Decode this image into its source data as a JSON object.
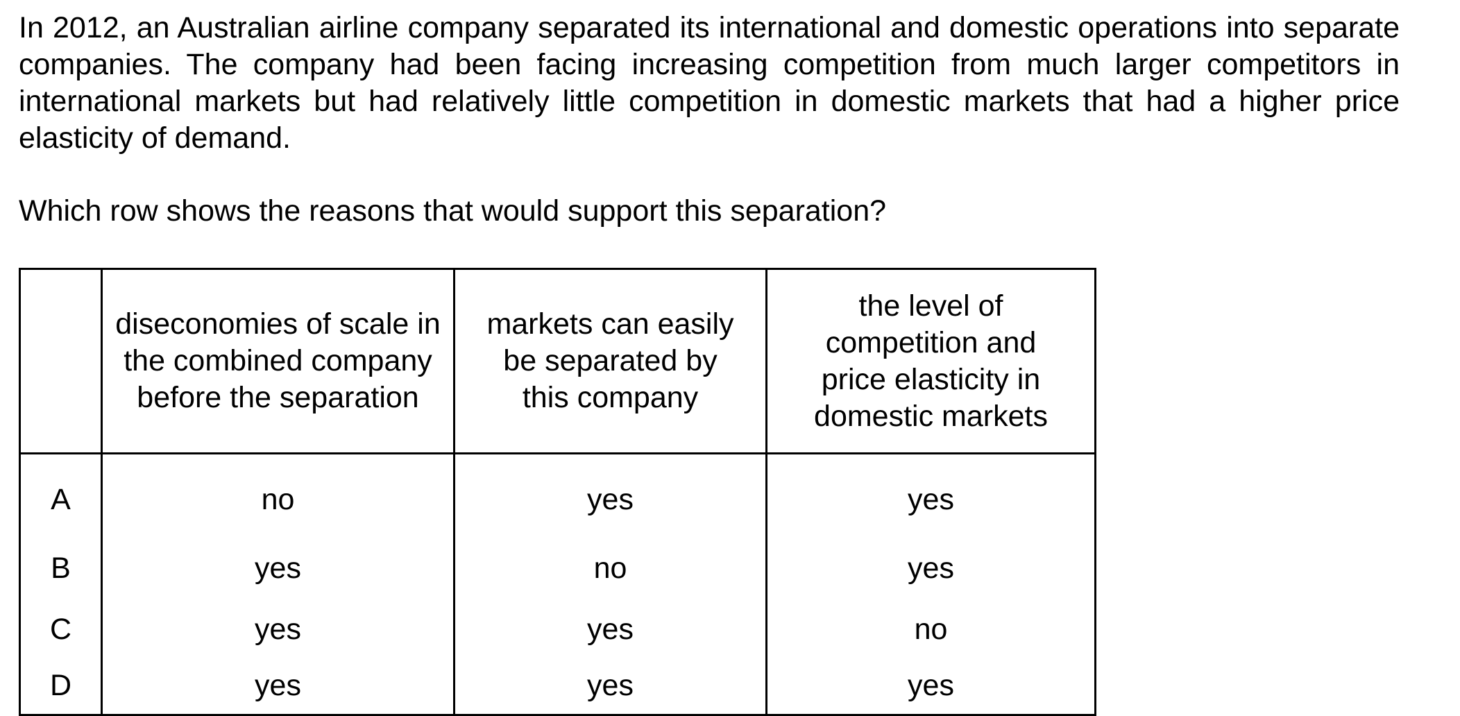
{
  "passage": "In 2012, an Australian airline company separated its international and domestic operations into separate companies. The company had been facing increasing competition from much larger competitors in international markets but had relatively little competition in domestic markets that had a higher price elasticity of demand.",
  "question": "Which row shows the reasons that would support this separation?",
  "table": {
    "headers": [
      "",
      "diseconomies of scale in the combined company before the separation",
      "markets can easily be separated by this company",
      "the level of competition and price elasticity in domestic markets"
    ],
    "rows": [
      {
        "letter": "A",
        "cells": [
          "no",
          "yes",
          "yes"
        ]
      },
      {
        "letter": "B",
        "cells": [
          "yes",
          "no",
          "yes"
        ]
      },
      {
        "letter": "C",
        "cells": [
          "yes",
          "yes",
          "no"
        ]
      },
      {
        "letter": "D",
        "cells": [
          "yes",
          "yes",
          "yes"
        ]
      }
    ]
  }
}
